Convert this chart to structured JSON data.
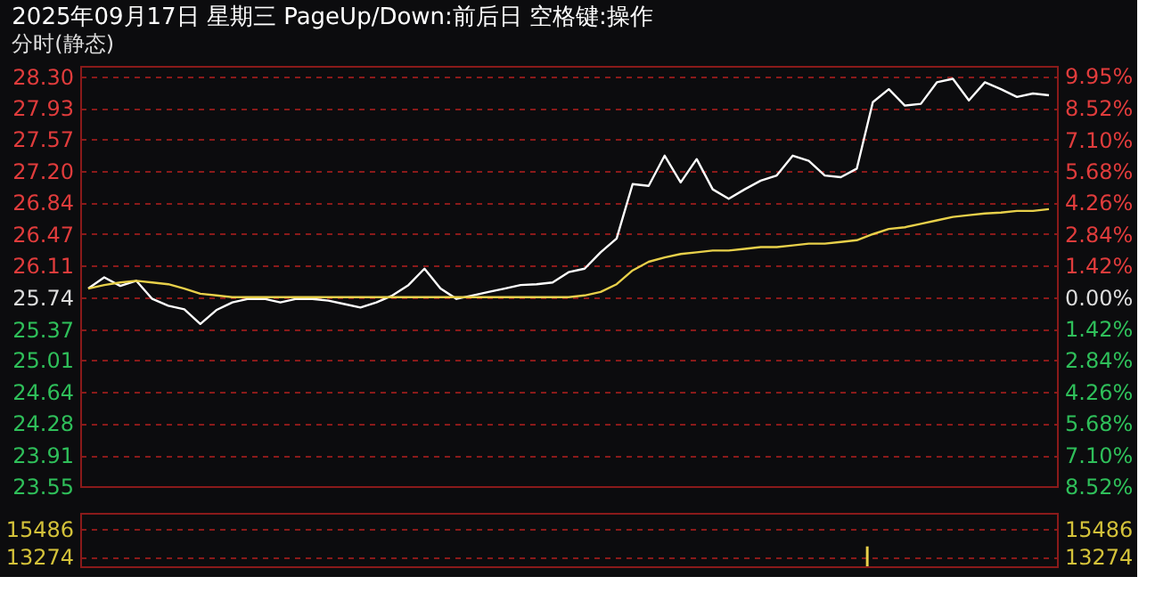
{
  "chart_data": [
    {
      "type": "line",
      "title": "2025年09月17日 星期三 PageUp/Down:前后日 空格键:操作",
      "subtitle": "分时(静态)",
      "categories": [
        null,
        null,
        null,
        null,
        null,
        null,
        null,
        null,
        null,
        null,
        null,
        null,
        null,
        null,
        null,
        null,
        null,
        null,
        null,
        null,
        null,
        null,
        null,
        null,
        null,
        null,
        null,
        null,
        null,
        null,
        null,
        null,
        null,
        null,
        null,
        null,
        null,
        null,
        null,
        null,
        null,
        null,
        null,
        null,
        null,
        null,
        null,
        null,
        null,
        null,
        null,
        null,
        null,
        null,
        null,
        null,
        null,
        null,
        null,
        null,
        null
      ],
      "series": [
        {
          "color": "#ffffff",
          "values": [
            25.84,
            25.97,
            25.87,
            25.93,
            25.72,
            25.64,
            25.6,
            25.43,
            25.59,
            25.68,
            25.72,
            25.72,
            25.68,
            25.72,
            25.72,
            25.7,
            25.66,
            25.62,
            25.68,
            25.76,
            25.88,
            26.07,
            25.84,
            25.72,
            25.76,
            25.8,
            25.84,
            25.88,
            25.89,
            25.91,
            26.03,
            26.07,
            26.26,
            26.42,
            27.05,
            27.03,
            27.38,
            27.07,
            27.34,
            26.99,
            26.88,
            26.99,
            27.09,
            27.15,
            27.38,
            27.32,
            27.15,
            27.13,
            27.23,
            28.0,
            28.15,
            27.96,
            27.98,
            28.23,
            28.27,
            28.02,
            28.23,
            28.15,
            28.06,
            28.1,
            28.08
          ]
        },
        {
          "color": "#e8d04a",
          "values": [
            25.84,
            25.88,
            25.91,
            25.93,
            25.91,
            25.89,
            25.84,
            25.78,
            25.76,
            25.74,
            25.74,
            25.74,
            25.74,
            25.74,
            25.74,
            25.74,
            25.74,
            25.74,
            25.74,
            25.74,
            25.74,
            25.74,
            25.74,
            25.74,
            25.74,
            25.74,
            25.74,
            25.74,
            25.74,
            25.74,
            25.74,
            25.76,
            25.8,
            25.89,
            26.05,
            26.15,
            26.2,
            26.24,
            26.26,
            26.28,
            26.28,
            26.3,
            26.32,
            26.32,
            26.34,
            26.36,
            26.36,
            26.38,
            26.4,
            26.47,
            26.53,
            26.55,
            26.59,
            26.63,
            26.67,
            26.69,
            26.71,
            26.72,
            26.74,
            26.74,
            26.76
          ]
        }
      ],
      "ylim": [
        23.55,
        28.42
      ],
      "yticks": [
        {
          "value": 28.3,
          "label": "28.30"
        },
        27.93,
        27.57,
        {
          "value": 27.2,
          "label": "27.20"
        },
        26.84,
        26.47,
        26.11,
        25.74,
        25.37,
        25.01,
        24.64,
        24.28,
        23.91,
        23.55
      ],
      "y2lim": [
        -8.52,
        10.41
      ],
      "y2ticks": [
        {
          "value": 9.95,
          "label": "9.95%"
        },
        {
          "value": 8.52,
          "label": "8.52%"
        },
        {
          "value": 7.1,
          "label": "7.10%"
        },
        {
          "value": 5.68,
          "label": "5.68%"
        },
        {
          "value": 4.26,
          "label": "4.26%"
        },
        {
          "value": 2.84,
          "label": "2.84%"
        },
        {
          "value": 1.42,
          "label": "1.42%"
        },
        {
          "value": 0,
          "label": "0.00%"
        },
        {
          "value": -1.42,
          "label": "1.42%"
        },
        {
          "value": -2.84,
          "label": "2.84%"
        },
        {
          "value": -4.26,
          "label": "4.26%"
        },
        {
          "value": -5.68,
          "label": "5.68%"
        },
        {
          "value": -7.1,
          "label": "7.10%"
        },
        {
          "value": -8.52,
          "label": "8.52%"
        }
      ],
      "grid": "y",
      "tick_labels": "y"
    },
    {
      "type": "bar",
      "categories": [
        null,
        null,
        null,
        null,
        null,
        null,
        null,
        null,
        null,
        null,
        null,
        null,
        null,
        null,
        null,
        null,
        null,
        null,
        null,
        null,
        null,
        null,
        null,
        null,
        null,
        null,
        null,
        null,
        null,
        null,
        null,
        null,
        null,
        null,
        null,
        null,
        null,
        null,
        null,
        null,
        null,
        null,
        null,
        null,
        null,
        null,
        null,
        null,
        null,
        null,
        null,
        null,
        null,
        null,
        null,
        null,
        null,
        null,
        null,
        null,
        null
      ],
      "series": [
        {
          "color": "#e8d04a",
          "values": [
            null,
            null,
            null,
            null,
            null,
            null,
            null,
            null,
            null,
            null,
            null,
            null,
            null,
            null,
            null,
            null,
            null,
            null,
            null,
            null,
            null,
            null,
            null,
            null,
            null,
            null,
            null,
            null,
            null,
            null,
            null,
            null,
            null,
            null,
            null,
            null,
            null,
            null,
            null,
            null,
            null,
            null,
            null,
            null,
            null,
            null,
            null,
            null,
            null,
            14100,
            null,
            null,
            null,
            null,
            null,
            null,
            null,
            null,
            null,
            null,
            null
          ]
        }
      ],
      "ylim": [
        12500,
        16800
      ],
      "yticks": [
        15486,
        13274
      ],
      "y2lim": [
        12500,
        16800
      ],
      "y2ticks": [
        15486,
        13274
      ],
      "grid": "y",
      "tick_labels": "y"
    }
  ]
}
